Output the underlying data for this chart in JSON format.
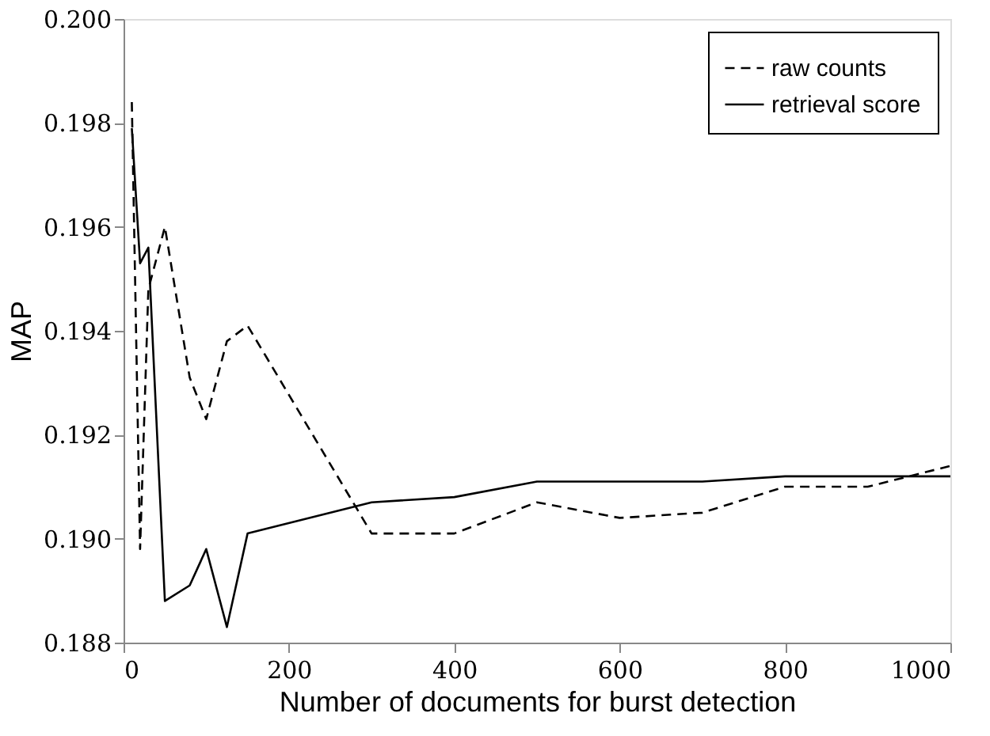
{
  "chart_data": {
    "type": "line",
    "xlabel": "Number of documents for burst detection",
    "ylabel": "MAP",
    "xlim": [
      0,
      1000
    ],
    "xticks": [
      0,
      200,
      400,
      600,
      800,
      1000
    ],
    "ylim": [
      0.188,
      0.2
    ],
    "yticks": [
      {
        "value": 0.188,
        "label": "0.188"
      },
      {
        "value": 0.19,
        "label": "0.190"
      },
      {
        "value": 0.192,
        "label": "0.192"
      },
      {
        "value": 0.194,
        "label": "0.194"
      },
      {
        "value": 0.196,
        "label": "0.196"
      },
      {
        "value": 0.198,
        "label": "0.198"
      },
      {
        "value": 0.2,
        "label": "0.200"
      }
    ],
    "grid": false,
    "legend": "top right",
    "marker": "none",
    "series": [
      {
        "name": "raw counts",
        "color": "#000000",
        "line_style": "dashed",
        "x": [
          10,
          20,
          30,
          50,
          80,
          100,
          125,
          150,
          300,
          400,
          500,
          600,
          700,
          800,
          900,
          1000
        ],
        "values": [
          0.1984,
          0.1898,
          0.1948,
          0.196,
          0.1931,
          0.1923,
          0.1938,
          0.1941,
          0.1901,
          0.1901,
          0.1907,
          0.1904,
          0.1905,
          0.191,
          0.191,
          0.1914
        ]
      },
      {
        "name": "retrieval score",
        "color": "#000000",
        "line_style": "solid",
        "x": [
          10,
          20,
          30,
          50,
          80,
          100,
          125,
          150,
          300,
          400,
          500,
          600,
          700,
          800,
          900,
          1000
        ],
        "values": [
          0.1979,
          0.1953,
          0.1956,
          0.1888,
          0.1891,
          0.1898,
          0.1883,
          0.1901,
          0.1907,
          0.1908,
          0.1911,
          0.1911,
          0.1911,
          0.1912,
          0.1912,
          0.1912
        ]
      }
    ]
  }
}
